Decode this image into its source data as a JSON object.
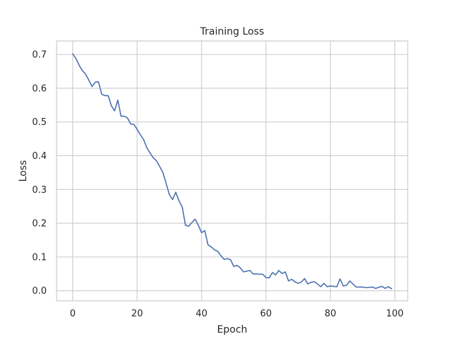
{
  "chart_data": {
    "type": "line",
    "title": "Training Loss",
    "xlabel": "Epoch",
    "ylabel": "Loss",
    "xlim": [
      -5,
      104
    ],
    "ylim": [
      -0.03,
      0.74
    ],
    "xticks": [
      0,
      20,
      40,
      60,
      80,
      100
    ],
    "yticks": [
      0.0,
      0.1,
      0.2,
      0.3,
      0.4,
      0.5,
      0.6,
      0.7
    ],
    "ytick_labels": [
      "0.0",
      "0.1",
      "0.2",
      "0.3",
      "0.4",
      "0.5",
      "0.6",
      "0.7"
    ],
    "grid": true,
    "colors": {
      "series": "#4c72b0",
      "grid": "#cccccc",
      "text": "#262626"
    },
    "series": [
      {
        "x": [
          0,
          1,
          2,
          3,
          4,
          5,
          6,
          7,
          8,
          9,
          10,
          11,
          12,
          13,
          14,
          15,
          16,
          17,
          18,
          19,
          20,
          21,
          22,
          23,
          24,
          25,
          26,
          27,
          28,
          29,
          30,
          31,
          32,
          33,
          34,
          35,
          36,
          37,
          38,
          39,
          40,
          41,
          42,
          43,
          44,
          45,
          46,
          47,
          48,
          49,
          50,
          51,
          52,
          53,
          54,
          55,
          56,
          57,
          58,
          59,
          60,
          61,
          62,
          63,
          64,
          65,
          66,
          67,
          68,
          69,
          70,
          71,
          72,
          73,
          74,
          75,
          76,
          77,
          78,
          79,
          80,
          81,
          82,
          83,
          84,
          85,
          86,
          87,
          88,
          89,
          90,
          91,
          92,
          93,
          94,
          95,
          96,
          97,
          98,
          99
        ],
        "y": [
          0.702,
          0.688,
          0.668,
          0.652,
          0.642,
          0.624,
          0.605,
          0.618,
          0.619,
          0.582,
          0.578,
          0.578,
          0.548,
          0.533,
          0.565,
          0.517,
          0.517,
          0.512,
          0.494,
          0.493,
          0.478,
          0.462,
          0.448,
          0.424,
          0.408,
          0.394,
          0.385,
          0.368,
          0.35,
          0.318,
          0.285,
          0.27,
          0.292,
          0.266,
          0.248,
          0.194,
          0.191,
          0.202,
          0.212,
          0.194,
          0.172,
          0.178,
          0.136,
          0.13,
          0.121,
          0.117,
          0.104,
          0.093,
          0.095,
          0.092,
          0.072,
          0.075,
          0.068,
          0.056,
          0.058,
          0.06,
          0.05,
          0.05,
          0.049,
          0.049,
          0.039,
          0.038,
          0.054,
          0.047,
          0.06,
          0.051,
          0.056,
          0.029,
          0.034,
          0.026,
          0.022,
          0.026,
          0.036,
          0.02,
          0.025,
          0.027,
          0.02,
          0.012,
          0.022,
          0.012,
          0.014,
          0.013,
          0.012,
          0.035,
          0.014,
          0.016,
          0.029,
          0.02,
          0.011,
          0.011,
          0.011,
          0.009,
          0.01,
          0.011,
          0.007,
          0.01,
          0.013,
          0.007,
          0.012,
          0.006
        ]
      }
    ]
  }
}
